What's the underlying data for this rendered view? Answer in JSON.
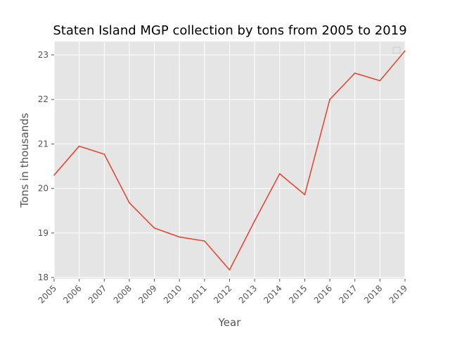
{
  "chart_data": {
    "type": "line",
    "title": "Staten Island MGP collection by tons from 2005 to 2019",
    "xlabel": "Year",
    "ylabel": "Tons in thousands",
    "x": [
      "2005",
      "2006",
      "2007",
      "2008",
      "2009",
      "2010",
      "2011",
      "2012",
      "2013",
      "2014",
      "2015",
      "2016",
      "2017",
      "2018",
      "2019"
    ],
    "y_ticks": [
      "18",
      "19",
      "20",
      "21",
      "22",
      "23"
    ],
    "ylim": [
      17.97,
      23.3
    ],
    "series": [
      {
        "values": [
          20.3,
          20.95,
          20.77,
          19.68,
          19.11,
          18.91,
          18.82,
          18.17,
          19.27,
          20.33,
          19.86,
          22.0,
          22.59,
          22.42,
          23.09
        ],
        "color": "#E24A33"
      }
    ],
    "grid": true,
    "legend": "top-right (empty)",
    "style": {
      "plot_background": "#E5E5E5",
      "grid_color": "#FFFFFF",
      "text_color": "#555555",
      "title_color": "#000000"
    }
  }
}
